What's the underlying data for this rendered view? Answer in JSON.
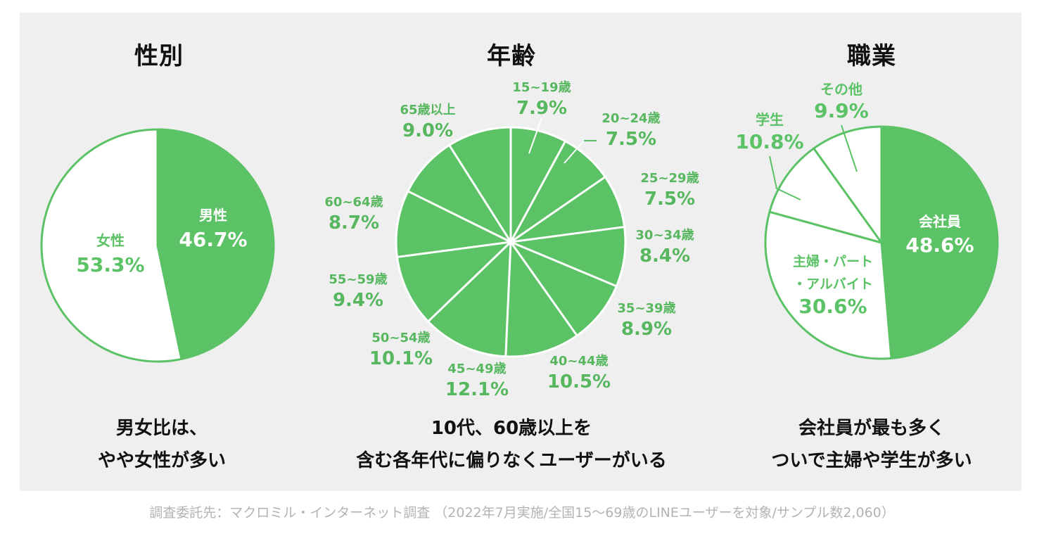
{
  "colors": {
    "green": "#5cc266",
    "white": "#ffffff",
    "background": "#efefef",
    "label_green": "#57b75f"
  },
  "sections": {
    "gender": {
      "title": "性別",
      "caption": [
        "男女比は、",
        "やや女性が多い"
      ]
    },
    "age": {
      "title": "年齢",
      "caption": [
        "10代、60歳以上を",
        "含む各年代に偏りなくユーザーがいる"
      ]
    },
    "job": {
      "title": "職業",
      "caption": [
        "会社員が最も多く",
        "ついで主婦や学生が多い"
      ]
    }
  },
  "chart_data": [
    {
      "type": "pie",
      "id": "gender",
      "title": "性別",
      "slices": [
        {
          "label": "男性",
          "value": 46.7,
          "value_label": "46.7%",
          "fill": "green"
        },
        {
          "label": "女性",
          "value": 53.3,
          "value_label": "53.3%",
          "fill": "white"
        }
      ]
    },
    {
      "type": "pie",
      "id": "age",
      "title": "年齢",
      "slices": [
        {
          "label": "15~19歳",
          "value": 7.9,
          "value_label": "7.9%"
        },
        {
          "label": "20~24歳",
          "value": 7.5,
          "value_label": "7.5%"
        },
        {
          "label": "25~29歳",
          "value": 7.5,
          "value_label": "7.5%"
        },
        {
          "label": "30~34歳",
          "value": 8.4,
          "value_label": "8.4%"
        },
        {
          "label": "35~39歳",
          "value": 8.9,
          "value_label": "8.9%"
        },
        {
          "label": "40~44歳",
          "value": 10.5,
          "value_label": "10.5%"
        },
        {
          "label": "45~49歳",
          "value": 12.1,
          "value_label": "12.1%"
        },
        {
          "label": "50~54歳",
          "value": 10.1,
          "value_label": "10.1%"
        },
        {
          "label": "55~59歳",
          "value": 9.4,
          "value_label": "9.4%"
        },
        {
          "label": "60~64歳",
          "value": 8.7,
          "value_label": "8.7%"
        },
        {
          "label": "65歳以上",
          "value": 9.0,
          "value_label": "9.0%"
        }
      ]
    },
    {
      "type": "pie",
      "id": "job",
      "title": "職業",
      "slices": [
        {
          "label": "会社員",
          "value": 48.6,
          "value_label": "48.6%",
          "fill": "green"
        },
        {
          "label": "主婦・パート・アルバイト",
          "label_lines": [
            "主婦・パート",
            "・アルバイト"
          ],
          "value": 30.6,
          "value_label": "30.6%",
          "fill": "white"
        },
        {
          "label": "学生",
          "value": 10.8,
          "value_label": "10.8%",
          "fill": "white"
        },
        {
          "label": "その他",
          "value": 9.9,
          "value_label": "9.9%",
          "fill": "white"
        }
      ]
    }
  ],
  "footnote": "調査委託先：マクロミル・インターネット調査 （2022年7月実施/全国15〜69歳のLINEユーザーを対象/サンプル数2,060）"
}
